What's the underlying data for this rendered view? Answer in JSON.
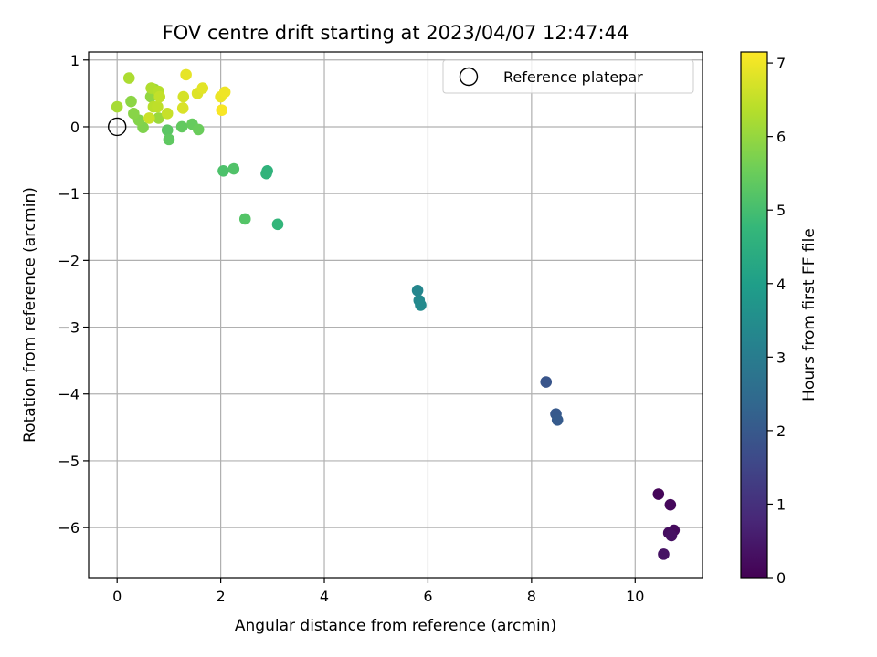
{
  "chart_data": {
    "type": "scatter",
    "title": "FOV centre drift starting at 2023/04/07 12:47:44",
    "xlabel": "Angular distance from reference (arcmin)",
    "ylabel": "Rotation from reference (arcmin)",
    "xlim": [
      -0.55,
      11.3
    ],
    "ylim": [
      -6.75,
      1.12
    ],
    "xticks": [
      0,
      2,
      4,
      6,
      8,
      10
    ],
    "yticks": [
      1,
      0,
      -1,
      -2,
      -3,
      -4,
      -5,
      -6
    ],
    "grid": true,
    "legend": {
      "placement": "top-right",
      "entries": [
        {
          "label": "Reference platepar",
          "marker": "open-circle",
          "color": "#000000"
        }
      ]
    },
    "reference_point": {
      "x": 0,
      "y": 0
    },
    "colorbar": {
      "label": "Hours from first FF file",
      "colormap": "viridis",
      "range": [
        0,
        7.15
      ],
      "ticks": [
        0,
        1,
        2,
        3,
        4,
        5,
        6,
        7
      ],
      "colors": [
        "#440154",
        "#482878",
        "#3e4989",
        "#31688e",
        "#26828e",
        "#1f9e89",
        "#35b779",
        "#6ece58",
        "#b5de2b",
        "#fde725"
      ]
    },
    "points": [
      {
        "x": 10.45,
        "y": -5.5,
        "hours": 0.1
      },
      {
        "x": 10.68,
        "y": -5.66,
        "hours": 0.15
      },
      {
        "x": 10.75,
        "y": -6.04,
        "hours": 0.2
      },
      {
        "x": 10.65,
        "y": -6.08,
        "hours": 0.25
      },
      {
        "x": 10.7,
        "y": -6.12,
        "hours": 0.3
      },
      {
        "x": 10.55,
        "y": -6.4,
        "hours": 0.35
      },
      {
        "x": 8.28,
        "y": -3.82,
        "hours": 1.9
      },
      {
        "x": 8.47,
        "y": -4.3,
        "hours": 2.0
      },
      {
        "x": 8.5,
        "y": -4.39,
        "hours": 2.05
      },
      {
        "x": 5.8,
        "y": -2.45,
        "hours": 3.3
      },
      {
        "x": 5.83,
        "y": -2.6,
        "hours": 3.35
      },
      {
        "x": 5.86,
        "y": -2.67,
        "hours": 3.4
      },
      {
        "x": 2.9,
        "y": -0.66,
        "hours": 4.6
      },
      {
        "x": 2.88,
        "y": -0.7,
        "hours": 4.65
      },
      {
        "x": 3.1,
        "y": -1.46,
        "hours": 4.7
      },
      {
        "x": 2.05,
        "y": -0.66,
        "hours": 5.1
      },
      {
        "x": 2.25,
        "y": -0.63,
        "hours": 5.15
      },
      {
        "x": 2.47,
        "y": -1.38,
        "hours": 5.2
      },
      {
        "x": 0.97,
        "y": -0.05,
        "hours": 5.3
      },
      {
        "x": 1.0,
        "y": -0.19,
        "hours": 5.35
      },
      {
        "x": 1.25,
        "y": 0.0,
        "hours": 5.4
      },
      {
        "x": 1.45,
        "y": 0.04,
        "hours": 5.45
      },
      {
        "x": 1.57,
        "y": -0.04,
        "hours": 5.5
      },
      {
        "x": 0.5,
        "y": -0.01,
        "hours": 5.75
      },
      {
        "x": 0.42,
        "y": 0.1,
        "hours": 5.8
      },
      {
        "x": 0.32,
        "y": 0.2,
        "hours": 5.85
      },
      {
        "x": 0.27,
        "y": 0.38,
        "hours": 5.9
      },
      {
        "x": 0.65,
        "y": 0.45,
        "hours": 5.95
      },
      {
        "x": 0.72,
        "y": 0.56,
        "hours": 6.0
      },
      {
        "x": 0.8,
        "y": 0.13,
        "hours": 6.05
      },
      {
        "x": 0.0,
        "y": 0.3,
        "hours": 6.2
      },
      {
        "x": 0.23,
        "y": 0.73,
        "hours": 6.25
      },
      {
        "x": 0.66,
        "y": 0.58,
        "hours": 6.3
      },
      {
        "x": 0.8,
        "y": 0.53,
        "hours": 6.35
      },
      {
        "x": 0.7,
        "y": 0.3,
        "hours": 6.4
      },
      {
        "x": 0.78,
        "y": 0.3,
        "hours": 6.45
      },
      {
        "x": 0.82,
        "y": 0.45,
        "hours": 6.5
      },
      {
        "x": 0.97,
        "y": 0.2,
        "hours": 6.55
      },
      {
        "x": 0.62,
        "y": 0.13,
        "hours": 6.6
      },
      {
        "x": 1.28,
        "y": 0.45,
        "hours": 6.7
      },
      {
        "x": 1.27,
        "y": 0.28,
        "hours": 6.75
      },
      {
        "x": 1.55,
        "y": 0.5,
        "hours": 6.8
      },
      {
        "x": 1.65,
        "y": 0.58,
        "hours": 6.85
      },
      {
        "x": 1.33,
        "y": 0.78,
        "hours": 6.9
      },
      {
        "x": 2.0,
        "y": 0.45,
        "hours": 6.95
      },
      {
        "x": 2.08,
        "y": 0.52,
        "hours": 7.0
      },
      {
        "x": 2.02,
        "y": 0.25,
        "hours": 7.1
      }
    ]
  }
}
